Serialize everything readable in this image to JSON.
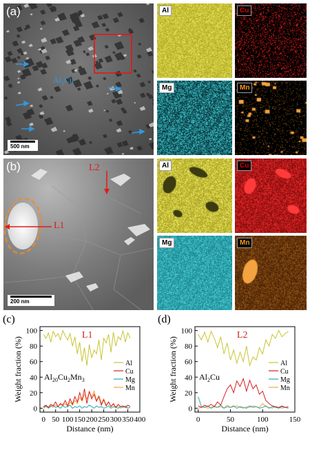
{
  "panel_a": {
    "label": "(a)",
    "phase_label": "Al",
    "phase_sub": "2",
    "phase_suffix": "Cu",
    "scale_bar": "500 nm",
    "maps": [
      "Al",
      "Cu",
      "Mg",
      "Mn"
    ]
  },
  "panel_b": {
    "label": "(b)",
    "line1": "L1",
    "line2": "L2",
    "scale_bar": "200 nm",
    "maps": [
      "Al",
      "Cu",
      "Mg",
      "Mn"
    ]
  },
  "colors": {
    "Al": "#c8c431",
    "Cu": "#d61f1f",
    "Mg": "#2aa7b2",
    "Mn": "#f4a340",
    "line": "#e41a1a",
    "arrow": "#2f9ae0"
  },
  "chart_data": [
    {
      "type": "line",
      "panel": "(c)",
      "annotation": "L1",
      "phase": "Al20Cu2Mn3",
      "phase_parts": [
        "Al",
        "20",
        "Cu",
        "2",
        "Mn",
        "3"
      ],
      "xlabel": "Distance (nm)",
      "ylabel": "Weight fraction (%)",
      "xlim": [
        -15,
        400
      ],
      "ylim": [
        -5,
        105
      ],
      "xticks": [
        0,
        50,
        100,
        150,
        200,
        250,
        300,
        350,
        400
      ],
      "yticks": [
        0,
        20,
        40,
        60,
        80,
        100
      ],
      "legend": [
        "Al",
        "Cu",
        "Mg",
        "Mn"
      ],
      "series": [
        {
          "name": "Al",
          "x": [
            0,
            10,
            20,
            30,
            40,
            50,
            60,
            70,
            80,
            90,
            100,
            110,
            120,
            130,
            140,
            150,
            160,
            170,
            180,
            190,
            200,
            210,
            220,
            230,
            240,
            250,
            260,
            270,
            280,
            290,
            300,
            310,
            320,
            330,
            340,
            350,
            360
          ],
          "values": [
            95,
            90,
            97,
            85,
            99,
            92,
            96,
            88,
            100,
            93,
            88,
            96,
            80,
            92,
            70,
            85,
            60,
            78,
            55,
            82,
            65,
            75,
            70,
            88,
            62,
            90,
            84,
            95,
            72,
            98,
            80,
            92,
            88,
            100,
            85,
            97,
            90
          ]
        },
        {
          "name": "Cu",
          "x": [
            0,
            10,
            20,
            30,
            40,
            50,
            60,
            70,
            80,
            90,
            100,
            110,
            120,
            130,
            140,
            150,
            160,
            170,
            180,
            190,
            200,
            210,
            220,
            230,
            240,
            250,
            260,
            270,
            280,
            290,
            300,
            310,
            320,
            330,
            340,
            350,
            360
          ],
          "values": [
            2,
            4,
            1,
            5,
            3,
            8,
            2,
            6,
            4,
            10,
            3,
            12,
            5,
            15,
            8,
            20,
            10,
            25,
            6,
            22,
            12,
            18,
            9,
            15,
            4,
            11,
            3,
            8,
            2,
            6,
            1,
            5,
            2,
            3,
            1,
            4,
            2
          ]
        },
        {
          "name": "Mg",
          "x": [
            0,
            10,
            20,
            30,
            40,
            50,
            60,
            70,
            80,
            90,
            100,
            110,
            120,
            130,
            140,
            150,
            160,
            170,
            180,
            190,
            200,
            210,
            220,
            230,
            240,
            250,
            260,
            270,
            280,
            290,
            300,
            310,
            320,
            330,
            340,
            350,
            360
          ],
          "values": [
            1,
            3,
            0,
            2,
            4,
            1,
            2,
            0,
            3,
            1,
            2,
            4,
            0,
            2,
            1,
            3,
            0,
            2,
            1,
            4,
            2,
            0,
            3,
            1,
            2,
            0,
            1,
            3,
            0,
            2,
            1,
            0,
            2,
            1,
            3,
            0,
            1
          ]
        },
        {
          "name": "Mn",
          "x": [
            0,
            10,
            20,
            30,
            40,
            50,
            60,
            70,
            80,
            90,
            100,
            110,
            120,
            130,
            140,
            150,
            160,
            170,
            180,
            190,
            200,
            210,
            220,
            230,
            240,
            250,
            260,
            270,
            280,
            290,
            300,
            310,
            320,
            330,
            340,
            350,
            360
          ],
          "values": [
            0,
            2,
            1,
            3,
            1,
            4,
            2,
            5,
            3,
            6,
            2,
            8,
            4,
            10,
            6,
            14,
            9,
            18,
            12,
            20,
            15,
            22,
            10,
            16,
            6,
            12,
            4,
            8,
            2,
            5,
            1,
            3,
            0,
            2,
            1,
            0,
            1
          ]
        }
      ]
    },
    {
      "type": "line",
      "panel": "(d)",
      "annotation": "L2",
      "phase": "Al2Cu",
      "phase_parts": [
        "Al",
        "2",
        "Cu"
      ],
      "xlabel": "Distance (nm)",
      "ylabel": "Weight fraction (%)",
      "xlim": [
        -5,
        150
      ],
      "ylim": [
        -5,
        105
      ],
      "xticks": [
        0,
        50,
        100,
        150
      ],
      "yticks": [
        0,
        20,
        40,
        60,
        80,
        100
      ],
      "legend": [
        "Al",
        "Cu",
        "Mg",
        "Mn"
      ],
      "series": [
        {
          "name": "Al",
          "x": [
            0,
            5,
            10,
            15,
            20,
            25,
            30,
            35,
            40,
            45,
            50,
            55,
            60,
            65,
            70,
            75,
            80,
            85,
            90,
            95,
            100,
            105,
            110,
            115,
            120,
            125,
            130,
            135,
            140
          ],
          "values": [
            95,
            88,
            98,
            85,
            99,
            90,
            78,
            92,
            70,
            84,
            62,
            75,
            58,
            72,
            60,
            80,
            55,
            66,
            62,
            78,
            70,
            88,
            80,
            95,
            90,
            100,
            92,
            96,
            99
          ]
        },
        {
          "name": "Cu",
          "x": [
            0,
            5,
            10,
            15,
            20,
            25,
            30,
            35,
            40,
            45,
            50,
            55,
            60,
            65,
            70,
            75,
            80,
            85,
            90,
            95,
            100,
            105,
            110,
            115,
            120,
            125,
            130,
            135,
            140
          ],
          "values": [
            3,
            1,
            4,
            2,
            5,
            2,
            8,
            4,
            15,
            25,
            30,
            20,
            35,
            28,
            38,
            22,
            36,
            25,
            30,
            18,
            22,
            10,
            6,
            3,
            2,
            1,
            3,
            1,
            2
          ]
        },
        {
          "name": "Mg",
          "x": [
            0,
            5,
            10,
            15,
            20,
            25,
            30,
            35,
            40,
            45,
            50,
            55,
            60,
            65,
            70,
            75,
            80,
            85,
            90,
            95,
            100,
            105,
            110,
            115,
            120,
            125,
            130,
            135,
            140
          ],
          "values": [
            15,
            2,
            1,
            3,
            0,
            2,
            1,
            4,
            0,
            2,
            1,
            3,
            0,
            2,
            1,
            0,
            3,
            1,
            2,
            0,
            1,
            3,
            0,
            2,
            1,
            0,
            2,
            1,
            0
          ]
        },
        {
          "name": "Mn",
          "x": [
            0,
            5,
            10,
            15,
            20,
            25,
            30,
            35,
            40,
            45,
            50,
            55,
            60,
            65,
            70,
            75,
            80,
            85,
            90,
            95,
            100,
            105,
            110,
            115,
            120,
            125,
            130,
            135,
            140
          ],
          "values": [
            0,
            1,
            2,
            0,
            1,
            3,
            1,
            2,
            0,
            4,
            1,
            2,
            3,
            1,
            0,
            2,
            1,
            3,
            2,
            1,
            6,
            2,
            1,
            0,
            2,
            1,
            0,
            1,
            0
          ]
        }
      ]
    }
  ]
}
